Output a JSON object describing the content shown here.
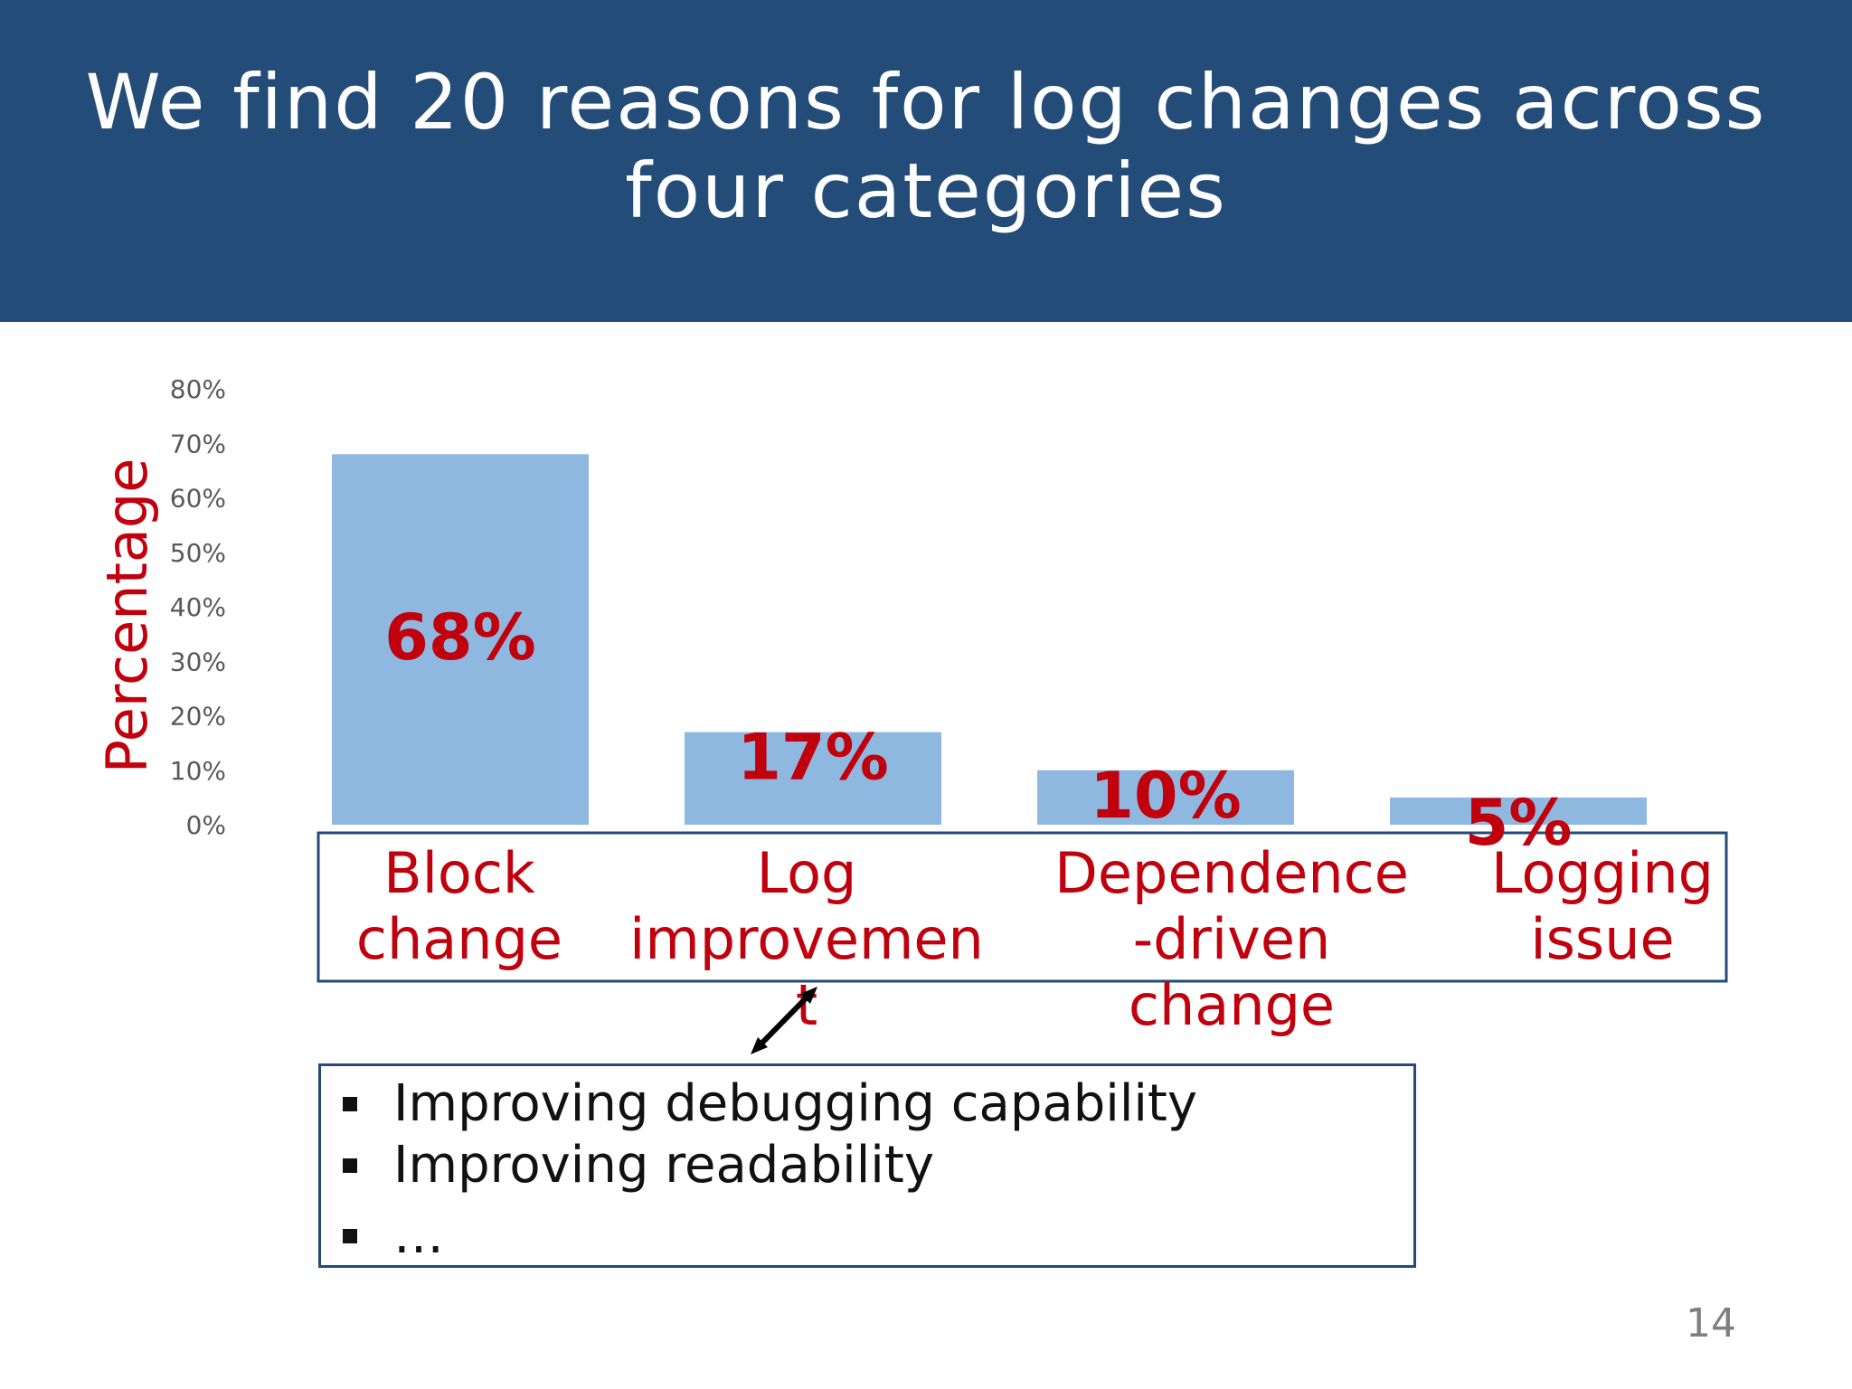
{
  "slide": {
    "title_line1": "We find 20 reasons for log changes across",
    "title_line2": "four categories",
    "page_number": "14"
  },
  "chart_data": {
    "type": "bar",
    "title": "",
    "ylabel": "Percentage",
    "xlabel": "",
    "ylim": [
      0,
      80
    ],
    "yticks": [
      "0%",
      "10%",
      "20%",
      "30%",
      "40%",
      "50%",
      "60%",
      "70%",
      "80%"
    ],
    "categories": [
      [
        "Block",
        "change"
      ],
      [
        "Log",
        "improvemen",
        "t"
      ],
      [
        "Dependence",
        "-driven",
        "change"
      ],
      [
        "Logging",
        "issue"
      ]
    ],
    "values": [
      68,
      17,
      10,
      5
    ],
    "data_labels": [
      "68%",
      "17%",
      "10%",
      "5%"
    ],
    "grid": false,
    "colors": {
      "bar": "#8fb8e1",
      "label_red": "#c0000c",
      "tick_gray": "#595959",
      "frame_blue": "#234d78"
    }
  },
  "callout": {
    "items": [
      "Improving debugging capability",
      "Improving readability",
      "…"
    ]
  }
}
